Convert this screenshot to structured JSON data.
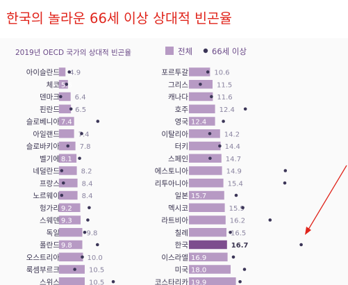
{
  "headline": "한국의 놀라운 66세 이상 상대적 빈곤율",
  "chart_data": {
    "type": "bar",
    "title": "2019년 OECD 국가의 상대적 빈곤율",
    "legend": [
      {
        "name": "전체",
        "symbol": "square",
        "color": "#b79ac4"
      },
      {
        "name": "66세 이상",
        "symbol": "dot",
        "color": "#3b3557"
      }
    ],
    "legend_position": "top-right",
    "bar_color": "#b79ac4",
    "highlight_color": "#7d4d8e",
    "dot_color": "#3b3557",
    "label_color": "#ffffff",
    "value_text_color": "#8a84a0",
    "panels": [
      {
        "categories": [
          "아이슬란드",
          "체코",
          "덴마크",
          "핀란드",
          "슬로베니아",
          "아일랜드",
          "슬로바키아",
          "벨기에",
          "네덜란드",
          "프랑스",
          "노르웨이",
          "헝가리",
          "스웨덴",
          "독일",
          "폴란드",
          "오스트리아",
          "룩셈부르크",
          "스위스"
        ],
        "series": [
          {
            "name": "전체",
            "values": [
              4.9,
              5.6,
              6.4,
              6.5,
              7.4,
              7.4,
              7.8,
              8.1,
              8.2,
              8.4,
              8.4,
              9.2,
              9.3,
              9.8,
              9.8,
              10.0,
              10.5,
              10.5
            ]
          },
          {
            "name": "66세 이상",
            "values": [
              6.0,
              5.2,
              3.5,
              6.5,
              14.3,
              9.6,
              5.6,
              9.0,
              3.8,
              4.3,
              3.8,
              11.8,
              11.4,
              10.5,
              14.2,
              9.8,
              7.6,
              18.8
            ]
          }
        ],
        "label_inside": [
          false,
          true,
          false,
          false,
          true,
          false,
          false,
          true,
          false,
          false,
          false,
          true,
          true,
          false,
          true,
          false,
          false,
          false
        ],
        "highlight": [
          false,
          false,
          false,
          false,
          false,
          false,
          false,
          false,
          false,
          false,
          false,
          false,
          false,
          false,
          false,
          false,
          false,
          false
        ]
      },
      {
        "categories": [
          "포르투갈",
          "그리스",
          "캐나다",
          "호주",
          "영국",
          "이탈리아",
          "터키",
          "스페인",
          "에스토니아",
          "리투아니아",
          "일본",
          "멕시코",
          "라트비아",
          "칠레",
          "한국",
          "이스라엘",
          "미국",
          "코스타리카"
        ],
        "series": [
          {
            "name": "전체",
            "values": [
              10.6,
              11.5,
              11.6,
              12.4,
              12.4,
              14.2,
              14.4,
              14.7,
              14.9,
              15.4,
              15.7,
              15.9,
              16.2,
              16.5,
              16.7,
              16.9,
              18.0,
              19.9
            ]
          },
          {
            "name": "66세 이상",
            "values": [
              9.8,
              7.1,
              11.1,
              23.3,
              15.4,
              10.5,
              14.1,
              10.6,
              37.7,
              37.5,
              20.0,
              22.4,
              32.2,
              17.9,
              43.4,
              19.0,
              23.0,
              21.4
            ]
          }
        ],
        "label_inside": [
          false,
          false,
          false,
          false,
          true,
          false,
          false,
          false,
          false,
          false,
          true,
          false,
          false,
          false,
          false,
          true,
          true,
          true
        ],
        "highlight": [
          false,
          false,
          false,
          false,
          false,
          false,
          false,
          false,
          false,
          false,
          false,
          false,
          false,
          false,
          true,
          false,
          false,
          false
        ]
      }
    ]
  }
}
